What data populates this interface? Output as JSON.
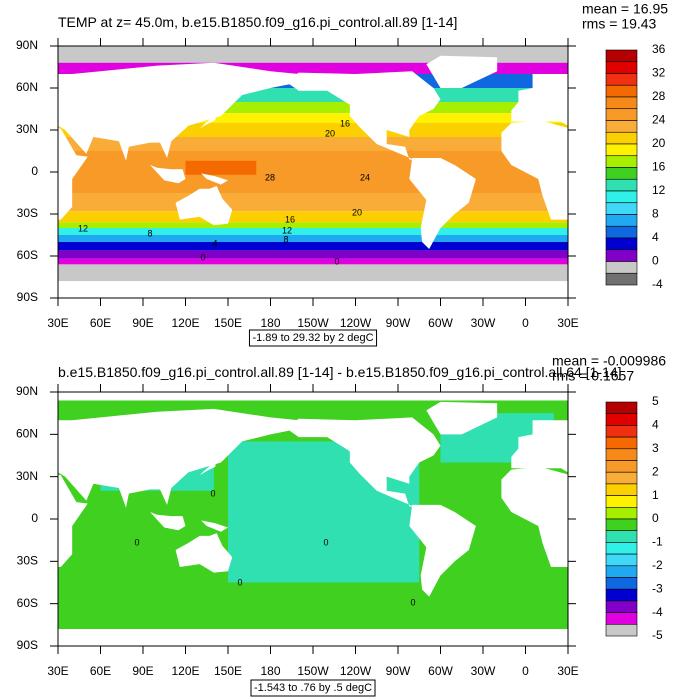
{
  "panels": [
    {
      "title": "TEMP at z=  45.0m, b.e15.B1850.f09_g16.pi_control.all.89 [1-14]",
      "stats": [
        "mean = 16.95",
        "rms = 19.43"
      ],
      "lat_labels": [
        "90N",
        "60N",
        "30N",
        "0",
        "30S",
        "60S",
        "90S"
      ],
      "lon_labels": [
        "30E",
        "60E",
        "90E",
        "120E",
        "150E",
        "180",
        "150W",
        "120W",
        "90W",
        "60W",
        "30W",
        "0",
        "30E"
      ],
      "range_note": "-1.89 to 29.32 by 2 degC",
      "colorbar": {
        "labels": [
          36,
          32,
          28,
          24,
          20,
          16,
          12,
          8,
          4,
          0,
          -4
        ],
        "colors": [
          "#b40000",
          "#e00000",
          "#f03010",
          "#f56a00",
          "#f58a18",
          "#f89a28",
          "#f9ac38",
          "#fcd000",
          "#fff200",
          "#a8ee00",
          "#40d020",
          "#30e0b0",
          "#30f0e8",
          "#40d8f8",
          "#20a8f0",
          "#1068e0",
          "#0000d0",
          "#8000c8",
          "#c8c8c8",
          "#707070"
        ]
      },
      "contour_labels": [
        "16",
        "20",
        "28",
        "24",
        "20",
        "16",
        "12",
        "8",
        "12",
        "8",
        "4",
        "0",
        "0"
      ]
    },
    {
      "title": "b.e15.B1850.f09_g16.pi_control.all.89 [1-14] - b.e15.B1850.f09_g16.pi_control.all.64 [1-14]",
      "stats": [
        "mean = -0.009986",
        "rms = 0.1657"
      ],
      "lat_labels": [
        "90N",
        "60N",
        "30N",
        "0",
        "30S",
        "60S",
        "90S"
      ],
      "lon_labels": [
        "30E",
        "60E",
        "90E",
        "120E",
        "150E",
        "180",
        "150W",
        "120W",
        "90W",
        "60W",
        "30W",
        "0",
        "30E"
      ],
      "range_note": "-1.543 to .76 by .5 degC",
      "colorbar": {
        "labels": [
          5,
          4,
          3,
          2,
          1,
          0,
          -1,
          -2,
          -3,
          -4,
          -5
        ],
        "colors": [
          "#b40000",
          "#e00000",
          "#f03010",
          "#f56a00",
          "#f58a18",
          "#f89a28",
          "#f9ac38",
          "#fcd000",
          "#fff200",
          "#a8ee00",
          "#40d020",
          "#30e0b0",
          "#30f0e8",
          "#40d8f8",
          "#20a8f0",
          "#1068e0",
          "#0000d0",
          "#8000c8",
          "#e000e0",
          "#c8c8c8"
        ]
      },
      "contour_labels": [
        "0",
        "0",
        "0",
        "0",
        "0"
      ]
    }
  ]
}
